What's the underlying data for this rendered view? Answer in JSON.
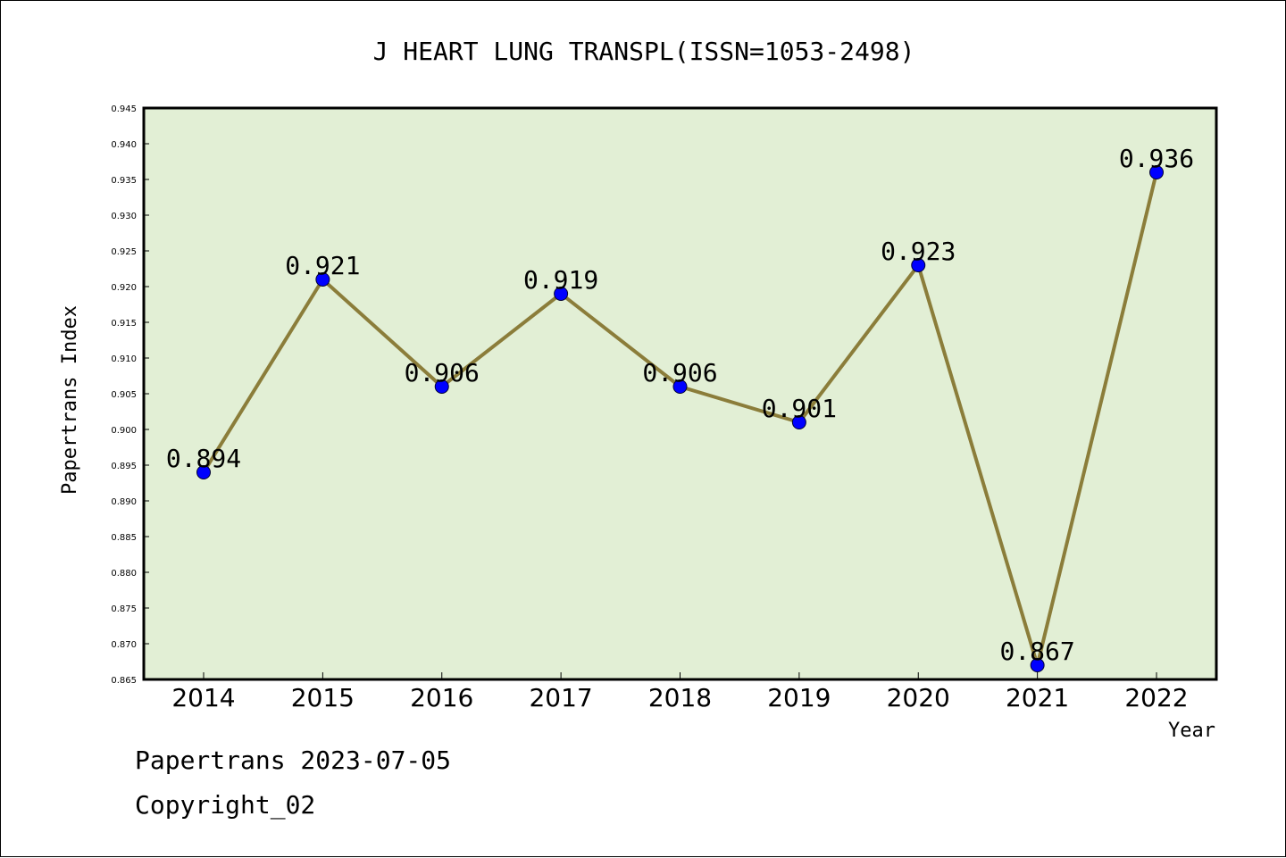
{
  "chart_data": {
    "type": "line",
    "title": "J HEART LUNG TRANSPL(ISSN=1053-2498)",
    "xlabel": "Year",
    "ylabel": "Papertrans Index",
    "categories": [
      "2014",
      "2015",
      "2016",
      "2017",
      "2018",
      "2019",
      "2020",
      "2021",
      "2022"
    ],
    "series": [
      {
        "values": [
          0.894,
          0.921,
          0.906,
          0.919,
          0.906,
          0.901,
          0.923,
          0.867,
          0.936
        ],
        "labels": [
          "0.894",
          "0.921",
          "0.906",
          "0.919",
          "0.906",
          "0.901",
          "0.923",
          "0.867",
          "0.936"
        ]
      }
    ],
    "ylim": [
      0.865,
      0.945
    ],
    "ytick_step": 0.005,
    "yticks": [
      "0.865",
      "0.870",
      "0.875",
      "0.880",
      "0.885",
      "0.890",
      "0.895",
      "0.900",
      "0.905",
      "0.910",
      "0.915",
      "0.920",
      "0.925",
      "0.930",
      "0.935",
      "0.940",
      "0.945"
    ],
    "grid": false,
    "legend": "none",
    "colors": {
      "plot_background": "#e2efd5",
      "line": "#8b7d3a",
      "marker": "#0000ff",
      "axis": "#000000"
    }
  },
  "footer": {
    "date_line": "Papertrans 2023-07-05",
    "copyright_line": "Copyright_02"
  }
}
